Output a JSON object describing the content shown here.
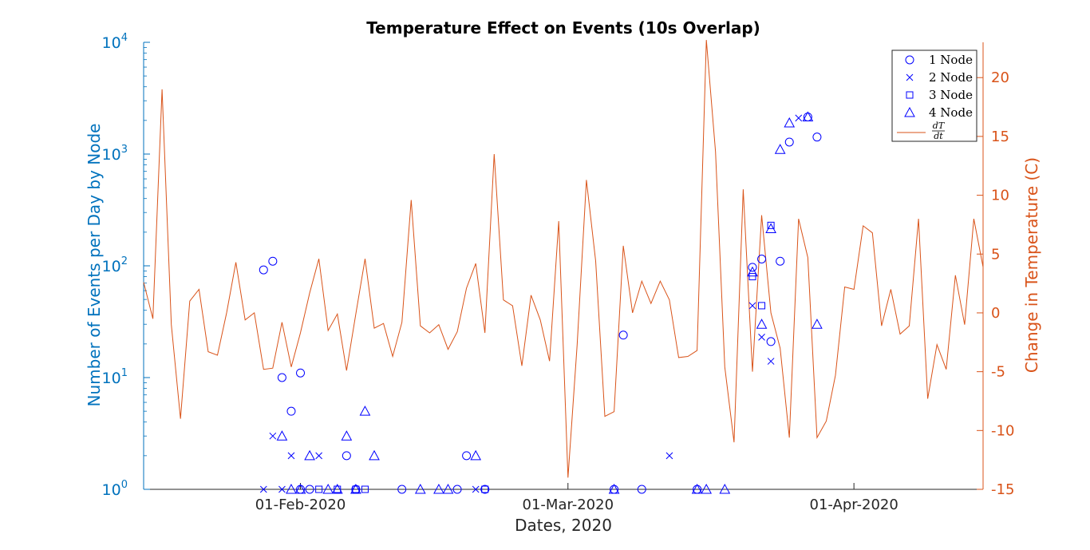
{
  "chart_data": {
    "type": "scatter",
    "title": "Temperature Effect on Events (10s Overlap)",
    "xlabel": "Dates, 2020",
    "ylabel_left": "Number of Events per Day by Node",
    "ylabel_right": "Change in Temperature (C)",
    "x_range": [
      "2020-01-15",
      "2020-04-15"
    ],
    "x_ticks": [
      {
        "date": "2020-02-01",
        "label": "01-Feb-2020"
      },
      {
        "date": "2020-03-01",
        "label": "01-Mar-2020"
      },
      {
        "date": "2020-04-01",
        "label": "01-Apr-2020"
      }
    ],
    "y_left": {
      "scale": "log",
      "range": [
        1,
        10000
      ],
      "ticks": [
        {
          "value": 1,
          "base": "10",
          "exp": "0"
        },
        {
          "value": 10,
          "base": "10",
          "exp": "1"
        },
        {
          "value": 100,
          "base": "10",
          "exp": "2"
        },
        {
          "value": 1000,
          "base": "10",
          "exp": "3"
        },
        {
          "value": 10000,
          "base": "10",
          "exp": "4"
        }
      ]
    },
    "y_right": {
      "scale": "linear",
      "range": [
        -15,
        23
      ],
      "ticks": [
        {
          "value": -15,
          "label": "-15"
        },
        {
          "value": -10,
          "label": "-10"
        },
        {
          "value": -5,
          "label": "-5"
        },
        {
          "value": 0,
          "label": "0"
        },
        {
          "value": 5,
          "label": "5"
        },
        {
          "value": 10,
          "label": "10"
        },
        {
          "value": 15,
          "label": "15"
        },
        {
          "value": 20,
          "label": "20"
        }
      ]
    },
    "colors": {
      "events": "#0000ff",
      "left_axis": "#0072bd",
      "right_axis": "#d95319",
      "axis": "#262626"
    },
    "legend": {
      "position": "top-right",
      "entries": [
        {
          "marker": "circle",
          "label": "1 Node"
        },
        {
          "marker": "x",
          "label": "2 Node"
        },
        {
          "marker": "square",
          "label": "3 Node"
        },
        {
          "marker": "triangle",
          "label": "4 Node"
        },
        {
          "marker": "line",
          "label_num": "dT",
          "label_den": "dt"
        }
      ]
    },
    "series": [
      {
        "name": "1 Node",
        "marker": "circle",
        "points": [
          {
            "x": "2020-01-28",
            "y": 92
          },
          {
            "x": "2020-01-29",
            "y": 110
          },
          {
            "x": "2020-01-30",
            "y": 10
          },
          {
            "x": "2020-01-31",
            "y": 5
          },
          {
            "x": "2020-02-01",
            "y": 11
          },
          {
            "x": "2020-02-01",
            "y": 1
          },
          {
            "x": "2020-02-02",
            "y": 1
          },
          {
            "x": "2020-02-06",
            "y": 2
          },
          {
            "x": "2020-02-07",
            "y": 1
          },
          {
            "x": "2020-02-12",
            "y": 1
          },
          {
            "x": "2020-02-18",
            "y": 1
          },
          {
            "x": "2020-02-19",
            "y": 2
          },
          {
            "x": "2020-02-21",
            "y": 1
          },
          {
            "x": "2020-03-06",
            "y": 1
          },
          {
            "x": "2020-03-07",
            "y": 24
          },
          {
            "x": "2020-03-09",
            "y": 1
          },
          {
            "x": "2020-03-15",
            "y": 1
          },
          {
            "x": "2020-03-21",
            "y": 97
          },
          {
            "x": "2020-03-22",
            "y": 115
          },
          {
            "x": "2020-03-23",
            "y": 21
          },
          {
            "x": "2020-03-24",
            "y": 110
          },
          {
            "x": "2020-03-25",
            "y": 1280
          },
          {
            "x": "2020-03-27",
            "y": 2150
          },
          {
            "x": "2020-03-28",
            "y": 1420
          }
        ]
      },
      {
        "name": "2 Node",
        "marker": "x",
        "points": [
          {
            "x": "2020-01-28",
            "y": 1
          },
          {
            "x": "2020-01-29",
            "y": 3
          },
          {
            "x": "2020-01-30",
            "y": 1
          },
          {
            "x": "2020-01-31",
            "y": 2
          },
          {
            "x": "2020-02-03",
            "y": 2
          },
          {
            "x": "2020-02-20",
            "y": 1
          },
          {
            "x": "2020-03-12",
            "y": 2
          },
          {
            "x": "2020-03-21",
            "y": 44
          },
          {
            "x": "2020-03-22",
            "y": 23
          },
          {
            "x": "2020-03-23",
            "y": 14
          },
          {
            "x": "2020-03-26",
            "y": 2100
          }
        ]
      },
      {
        "name": "3 Node",
        "marker": "square",
        "points": [
          {
            "x": "2020-02-03",
            "y": 1
          },
          {
            "x": "2020-02-05",
            "y": 1
          },
          {
            "x": "2020-02-07",
            "y": 1
          },
          {
            "x": "2020-02-08",
            "y": 1
          },
          {
            "x": "2020-02-21",
            "y": 1
          },
          {
            "x": "2020-03-21",
            "y": 80
          },
          {
            "x": "2020-03-22",
            "y": 44
          },
          {
            "x": "2020-03-23",
            "y": 230
          }
        ]
      },
      {
        "name": "4 Node",
        "marker": "triangle",
        "points": [
          {
            "x": "2020-01-30",
            "y": 3
          },
          {
            "x": "2020-01-31",
            "y": 1
          },
          {
            "x": "2020-02-01",
            "y": 1
          },
          {
            "x": "2020-02-02",
            "y": 2
          },
          {
            "x": "2020-02-04",
            "y": 1
          },
          {
            "x": "2020-02-05",
            "y": 1
          },
          {
            "x": "2020-02-06",
            "y": 3
          },
          {
            "x": "2020-02-07",
            "y": 1
          },
          {
            "x": "2020-02-08",
            "y": 5
          },
          {
            "x": "2020-02-09",
            "y": 2
          },
          {
            "x": "2020-02-14",
            "y": 1
          },
          {
            "x": "2020-02-16",
            "y": 1
          },
          {
            "x": "2020-02-17",
            "y": 1
          },
          {
            "x": "2020-02-20",
            "y": 2
          },
          {
            "x": "2020-03-06",
            "y": 1
          },
          {
            "x": "2020-03-15",
            "y": 1
          },
          {
            "x": "2020-03-16",
            "y": 1
          },
          {
            "x": "2020-03-18",
            "y": 1
          },
          {
            "x": "2020-03-21",
            "y": 88
          },
          {
            "x": "2020-03-22",
            "y": 30
          },
          {
            "x": "2020-03-23",
            "y": 215
          },
          {
            "x": "2020-03-24",
            "y": 1100
          },
          {
            "x": "2020-03-25",
            "y": 1900
          },
          {
            "x": "2020-03-27",
            "y": 2150
          },
          {
            "x": "2020-03-28",
            "y": 30
          }
        ]
      },
      {
        "name": "dT/dt",
        "type": "line",
        "axis": "right",
        "points": [
          {
            "x": "2020-01-15",
            "y": 2.6
          },
          {
            "x": "2020-01-16",
            "y": -0.5
          },
          {
            "x": "2020-01-17",
            "y": 19.0
          },
          {
            "x": "2020-01-18",
            "y": -1.0
          },
          {
            "x": "2020-01-19",
            "y": -9.0
          },
          {
            "x": "2020-01-20",
            "y": 1.0
          },
          {
            "x": "2020-01-21",
            "y": 2.0
          },
          {
            "x": "2020-01-22",
            "y": -3.3
          },
          {
            "x": "2020-01-23",
            "y": -3.6
          },
          {
            "x": "2020-01-24",
            "y": 0.0
          },
          {
            "x": "2020-01-25",
            "y": 4.3
          },
          {
            "x": "2020-01-26",
            "y": -0.6
          },
          {
            "x": "2020-01-27",
            "y": 0.0
          },
          {
            "x": "2020-01-28",
            "y": -4.8
          },
          {
            "x": "2020-01-29",
            "y": -4.7
          },
          {
            "x": "2020-01-30",
            "y": -0.8
          },
          {
            "x": "2020-01-31",
            "y": -4.6
          },
          {
            "x": "2020-02-01",
            "y": -1.7
          },
          {
            "x": "2020-02-02",
            "y": 1.7
          },
          {
            "x": "2020-02-03",
            "y": 4.6
          },
          {
            "x": "2020-02-04",
            "y": -1.5
          },
          {
            "x": "2020-02-05",
            "y": -0.1
          },
          {
            "x": "2020-02-06",
            "y": -4.9
          },
          {
            "x": "2020-02-07",
            "y": -0.1
          },
          {
            "x": "2020-02-08",
            "y": 4.6
          },
          {
            "x": "2020-02-09",
            "y": -1.3
          },
          {
            "x": "2020-02-10",
            "y": -0.9
          },
          {
            "x": "2020-02-11",
            "y": -3.7
          },
          {
            "x": "2020-02-12",
            "y": -0.8
          },
          {
            "x": "2020-02-13",
            "y": 9.6
          },
          {
            "x": "2020-02-14",
            "y": -1.1
          },
          {
            "x": "2020-02-15",
            "y": -1.7
          },
          {
            "x": "2020-02-16",
            "y": -1.0
          },
          {
            "x": "2020-02-17",
            "y": -3.1
          },
          {
            "x": "2020-02-18",
            "y": -1.6
          },
          {
            "x": "2020-02-19",
            "y": 2.1
          },
          {
            "x": "2020-02-20",
            "y": 4.2
          },
          {
            "x": "2020-02-21",
            "y": -1.7
          },
          {
            "x": "2020-02-22",
            "y": 13.5
          },
          {
            "x": "2020-02-23",
            "y": 1.1
          },
          {
            "x": "2020-02-24",
            "y": 0.6
          },
          {
            "x": "2020-02-25",
            "y": -4.5
          },
          {
            "x": "2020-02-26",
            "y": 1.5
          },
          {
            "x": "2020-02-27",
            "y": -0.6
          },
          {
            "x": "2020-02-28",
            "y": -4.1
          },
          {
            "x": "2020-02-29",
            "y": 7.8
          },
          {
            "x": "2020-03-01",
            "y": -14.0
          },
          {
            "x": "2020-03-02",
            "y": -2.7
          },
          {
            "x": "2020-03-03",
            "y": 11.3
          },
          {
            "x": "2020-03-04",
            "y": 4.4
          },
          {
            "x": "2020-03-05",
            "y": -8.8
          },
          {
            "x": "2020-03-06",
            "y": -8.4
          },
          {
            "x": "2020-03-07",
            "y": 5.7
          },
          {
            "x": "2020-03-08",
            "y": 0.0
          },
          {
            "x": "2020-03-09",
            "y": 2.7
          },
          {
            "x": "2020-03-10",
            "y": 0.8
          },
          {
            "x": "2020-03-11",
            "y": 2.7
          },
          {
            "x": "2020-03-12",
            "y": 1.1
          },
          {
            "x": "2020-03-13",
            "y": -3.8
          },
          {
            "x": "2020-03-14",
            "y": -3.7
          },
          {
            "x": "2020-03-15",
            "y": -3.2
          },
          {
            "x": "2020-03-16",
            "y": 23.2
          },
          {
            "x": "2020-03-17",
            "y": 13.7
          },
          {
            "x": "2020-03-18",
            "y": -4.6
          },
          {
            "x": "2020-03-19",
            "y": -11.0
          },
          {
            "x": "2020-03-20",
            "y": 10.5
          },
          {
            "x": "2020-03-21",
            "y": -5.0
          },
          {
            "x": "2020-03-22",
            "y": 8.3
          },
          {
            "x": "2020-03-23",
            "y": 0.0
          },
          {
            "x": "2020-03-24",
            "y": -3.0
          },
          {
            "x": "2020-03-25",
            "y": -10.6
          },
          {
            "x": "2020-03-26",
            "y": 8.0
          },
          {
            "x": "2020-03-27",
            "y": 4.7
          },
          {
            "x": "2020-03-28",
            "y": -10.6
          },
          {
            "x": "2020-03-29",
            "y": -9.2
          },
          {
            "x": "2020-03-30",
            "y": -5.3
          },
          {
            "x": "2020-03-31",
            "y": 2.2
          },
          {
            "x": "2020-04-01",
            "y": 2.0
          },
          {
            "x": "2020-04-02",
            "y": 7.4
          },
          {
            "x": "2020-04-03",
            "y": 6.8
          },
          {
            "x": "2020-04-04",
            "y": -1.1
          },
          {
            "x": "2020-04-05",
            "y": 2.0
          },
          {
            "x": "2020-04-06",
            "y": -1.8
          },
          {
            "x": "2020-04-07",
            "y": -1.1
          },
          {
            "x": "2020-04-08",
            "y": 8.0
          },
          {
            "x": "2020-04-09",
            "y": -7.3
          },
          {
            "x": "2020-04-10",
            "y": -2.7
          },
          {
            "x": "2020-04-11",
            "y": -4.8
          },
          {
            "x": "2020-04-12",
            "y": 3.2
          },
          {
            "x": "2020-04-13",
            "y": -1.0
          },
          {
            "x": "2020-04-14",
            "y": 8.0
          },
          {
            "x": "2020-04-15",
            "y": 3.9
          }
        ]
      }
    ]
  }
}
